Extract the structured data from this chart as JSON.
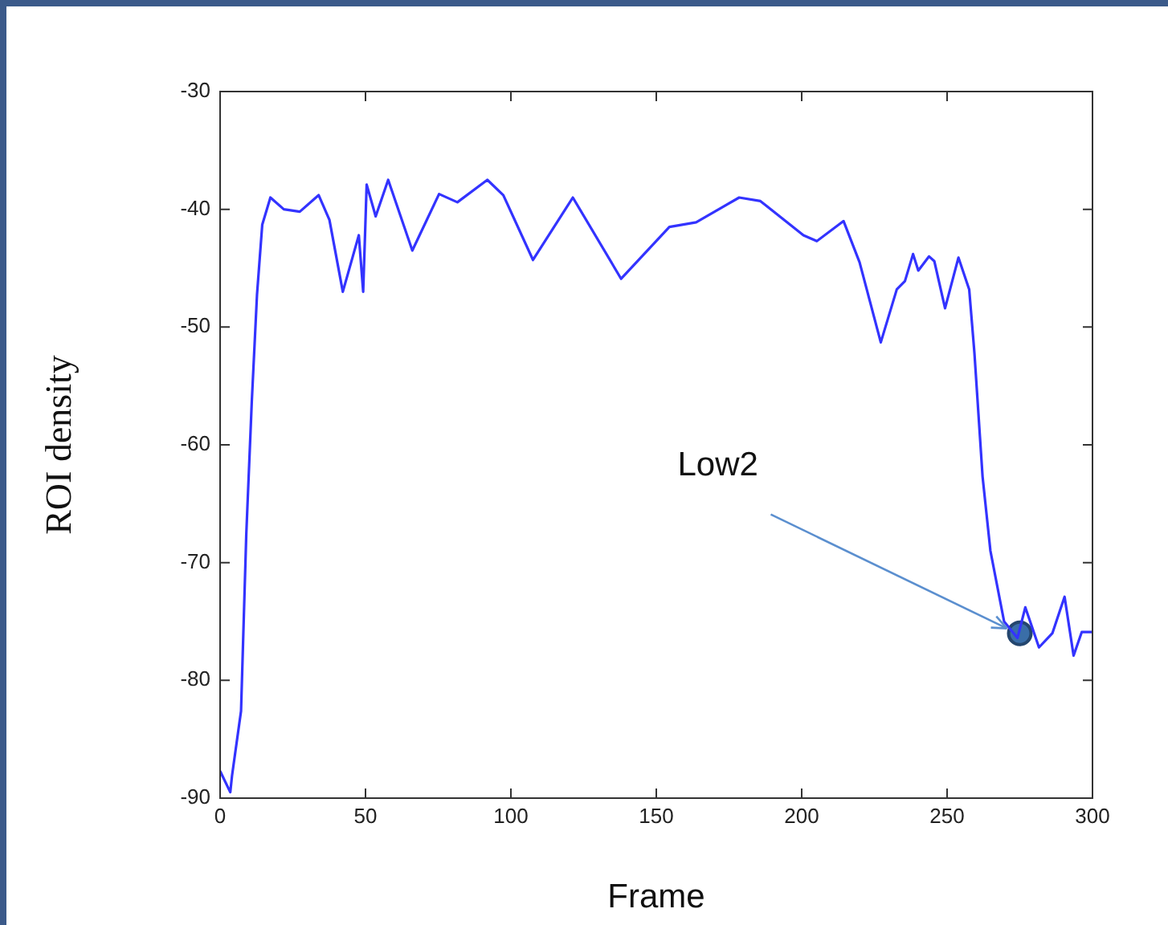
{
  "chart_data": {
    "type": "line",
    "xlabel": "Frame",
    "ylabel": "ROI density",
    "xlim": [
      0,
      300
    ],
    "xticks": [
      0,
      50,
      100,
      150,
      200,
      250,
      300
    ],
    "ylim": [
      -90,
      -30
    ],
    "yticks": [
      -90,
      -80,
      -70,
      -60,
      -50,
      -40,
      -30
    ],
    "grid": false,
    "legend": false,
    "marker": "none",
    "annotations": [
      {
        "text": "Low2",
        "x": 275,
        "y": -76
      }
    ],
    "series": [
      {
        "color": "#3333ff",
        "x": [
          0,
          3.5,
          4.1,
          7.2,
          9,
          10.9,
          12.7,
          14.5,
          17.3,
          21.9,
          27.4,
          33.9,
          37.6,
          42.2,
          47.7,
          49.2,
          50.4,
          53.5,
          57.8,
          66.1,
          75.3,
          81.6,
          91.9,
          97.4,
          107.6,
          121.3,
          137.9,
          154.5,
          163.7,
          178.5,
          185.8,
          200.6,
          205.2,
          214.4,
          219.9,
          227.2,
          232.7,
          235.5,
          238.3,
          240.1,
          243.8,
          245.6,
          249.3,
          253.9,
          257.6,
          259.4,
          262.2,
          264.9,
          269.6,
          274.2,
          276.9,
          281.6,
          286.2,
          290.4,
          293.5,
          296.3,
          300
        ],
        "values": [
          -87.7,
          -89.5,
          -88.1,
          -82.6,
          -67.6,
          -56.3,
          -47.2,
          -41.3,
          -39,
          -40,
          -40.2,
          -38.8,
          -40.9,
          -47,
          -42.2,
          -47,
          -37.9,
          -40.6,
          -37.5,
          -43.5,
          -38.7,
          -39.4,
          -37.5,
          -38.8,
          -44.3,
          -39,
          -45.9,
          -41.5,
          -41.1,
          -39,
          -39.3,
          -42.2,
          -42.7,
          -41,
          -44.5,
          -51.3,
          -46.8,
          -46.1,
          -43.8,
          -45.2,
          -44,
          -44.4,
          -48.4,
          -44.1,
          -46.8,
          -52.2,
          -62.7,
          -69,
          -75,
          -76.4,
          -73.8,
          -77.2,
          -76,
          -72.9,
          -77.9,
          -75.9,
          -75.9
        ]
      },
      {
        "type": "scatter",
        "color": "#3a6ea8",
        "marker": "circle",
        "x": [
          275
        ],
        "values": [
          -76
        ]
      }
    ]
  }
}
